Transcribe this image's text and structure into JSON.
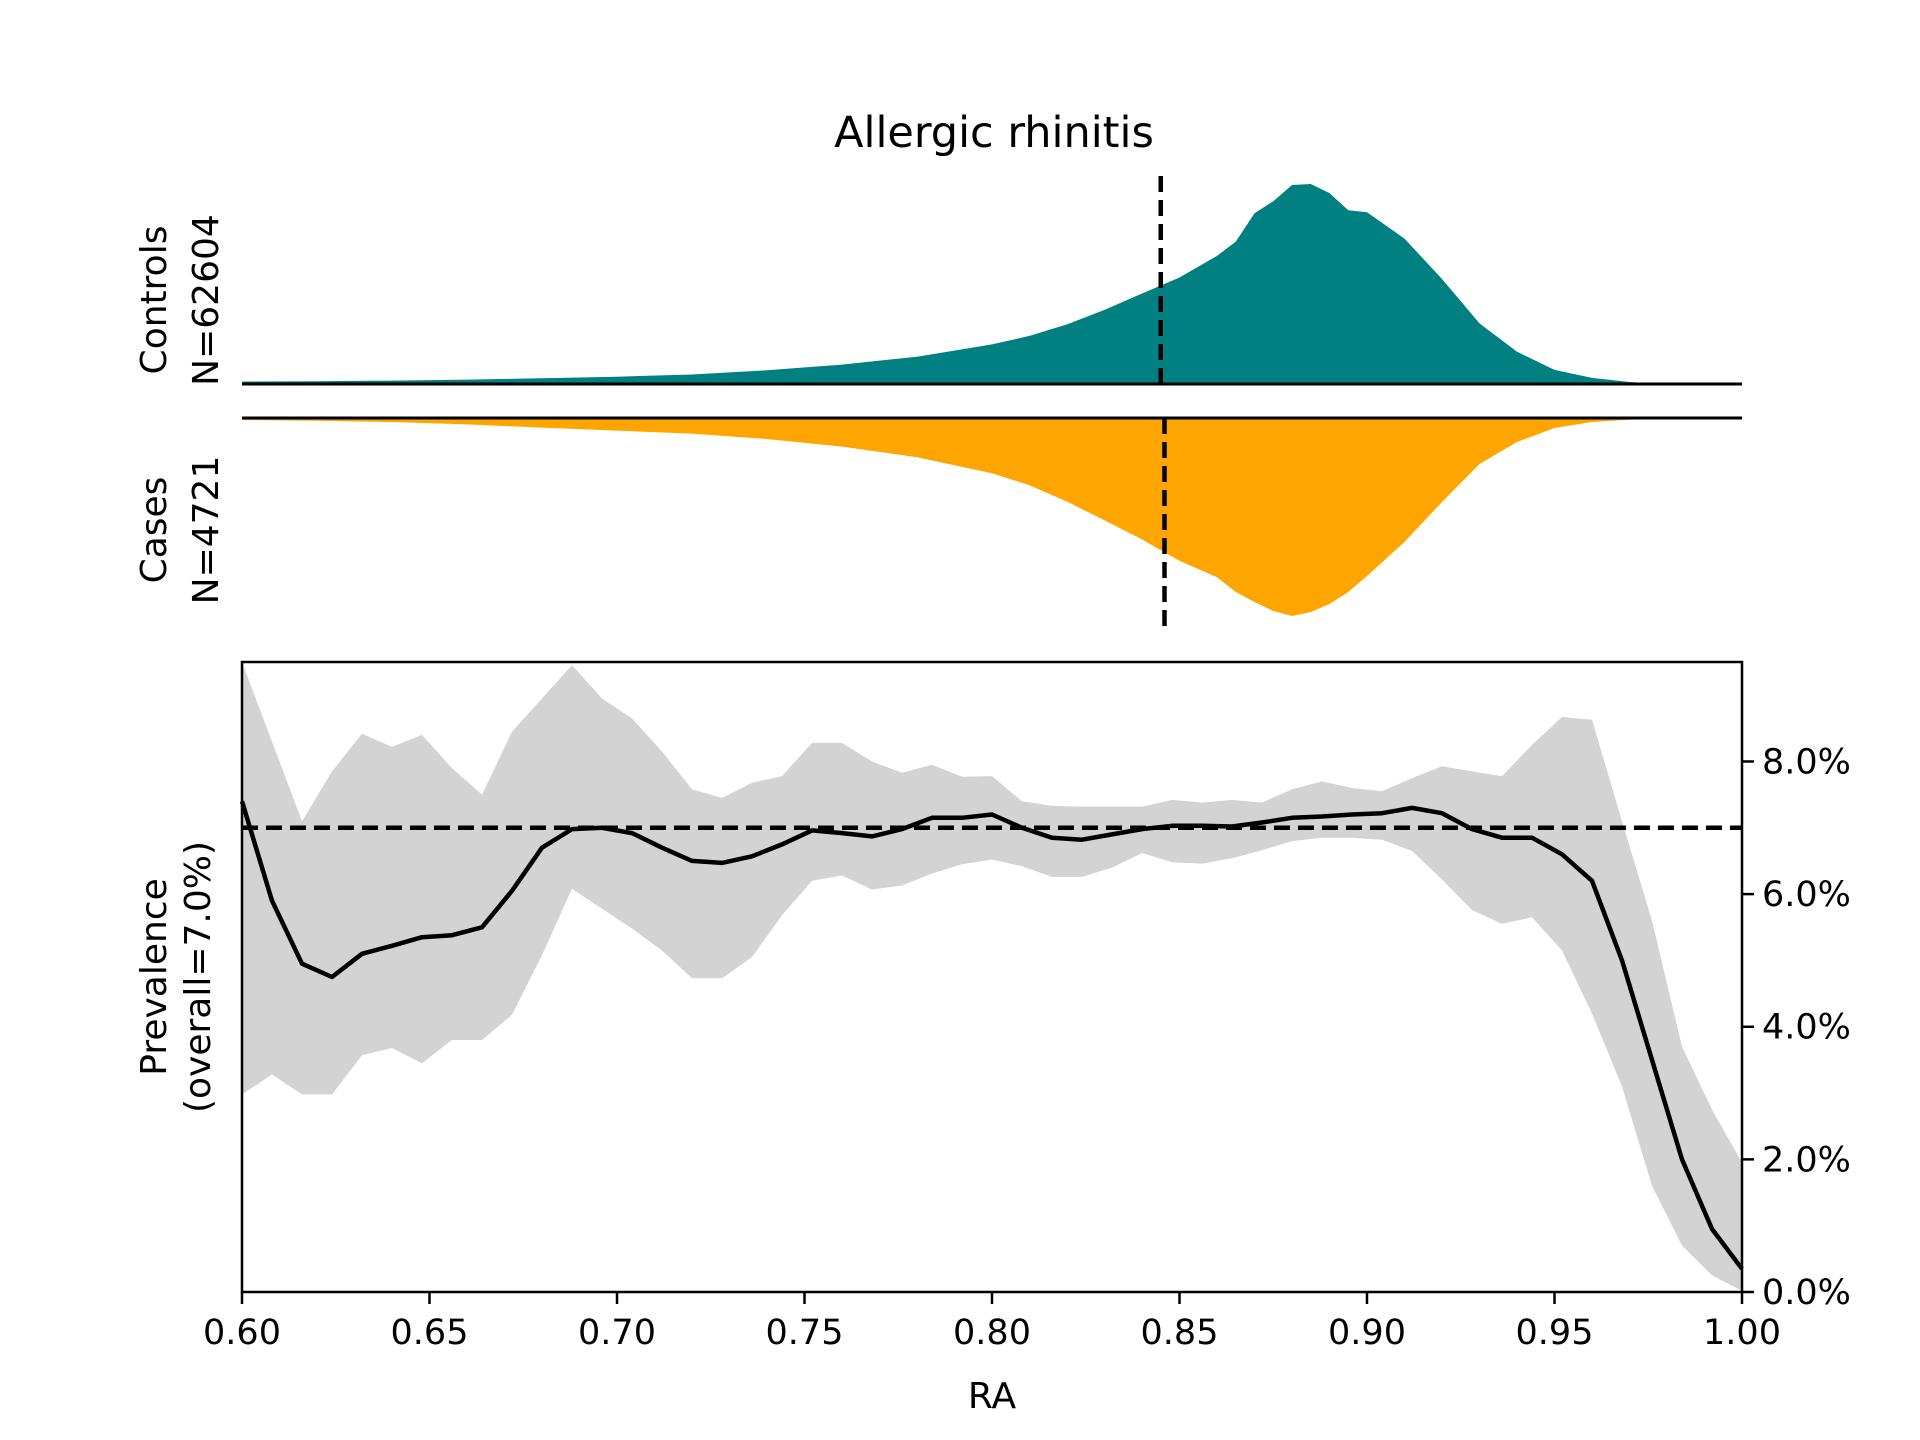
{
  "chart_data": {
    "type": "area",
    "title": "Allergic rhinitis",
    "xlabel": "RA",
    "xlim": [
      0.6,
      1.0
    ],
    "xticks": [
      "0.60",
      "0.65",
      "0.70",
      "0.75",
      "0.80",
      "0.85",
      "0.90",
      "0.95",
      "1.00"
    ],
    "colors": {
      "controls": "#008080",
      "cases": "#ffa500",
      "ci_band": "#d3d3d3",
      "line": "#000000"
    },
    "controls": {
      "label": "Controls",
      "n_label": "N=62604",
      "median": 0.845,
      "x": [
        0.6,
        0.62,
        0.64,
        0.66,
        0.68,
        0.7,
        0.72,
        0.74,
        0.76,
        0.78,
        0.8,
        0.81,
        0.82,
        0.83,
        0.84,
        0.85,
        0.86,
        0.865,
        0.87,
        0.875,
        0.88,
        0.885,
        0.89,
        0.895,
        0.9,
        0.91,
        0.92,
        0.93,
        0.94,
        0.95,
        0.96,
        0.97,
        0.98,
        1.0
      ],
      "density": [
        0.012,
        0.014,
        0.017,
        0.022,
        0.028,
        0.036,
        0.047,
        0.068,
        0.096,
        0.135,
        0.196,
        0.238,
        0.295,
        0.367,
        0.448,
        0.527,
        0.634,
        0.705,
        0.845,
        0.905,
        0.985,
        0.99,
        0.945,
        0.86,
        0.85,
        0.72,
        0.52,
        0.3,
        0.16,
        0.07,
        0.03,
        0.01,
        0.0,
        0.0
      ]
    },
    "cases": {
      "label": "Cases",
      "n_label": "N=4721",
      "median": 0.846,
      "x": [
        0.6,
        0.62,
        0.64,
        0.66,
        0.68,
        0.7,
        0.72,
        0.74,
        0.76,
        0.78,
        0.8,
        0.81,
        0.82,
        0.83,
        0.84,
        0.85,
        0.86,
        0.865,
        0.87,
        0.875,
        0.88,
        0.885,
        0.89,
        0.895,
        0.9,
        0.91,
        0.92,
        0.93,
        0.94,
        0.95,
        0.96,
        0.97,
        0.98,
        1.0
      ],
      "density": [
        0.01,
        0.014,
        0.02,
        0.032,
        0.048,
        0.063,
        0.078,
        0.105,
        0.143,
        0.196,
        0.276,
        0.336,
        0.418,
        0.512,
        0.607,
        0.714,
        0.796,
        0.87,
        0.92,
        0.965,
        0.99,
        0.97,
        0.93,
        0.87,
        0.79,
        0.62,
        0.42,
        0.23,
        0.12,
        0.05,
        0.02,
        0.008,
        0.003,
        0.0
      ]
    },
    "prevalence": {
      "ylabel_line1": "Prevalence",
      "ylabel_line2": "(overall=7.0%)",
      "overall": 7.0,
      "ylim": [
        0,
        9.5
      ],
      "yticks": [
        "0.0%",
        "2.0%",
        "4.0%",
        "6.0%",
        "8.0%"
      ],
      "x": [
        0.6,
        0.608,
        0.616,
        0.624,
        0.632,
        0.64,
        0.648,
        0.656,
        0.664,
        0.672,
        0.68,
        0.688,
        0.696,
        0.704,
        0.712,
        0.72,
        0.728,
        0.736,
        0.744,
        0.752,
        0.76,
        0.768,
        0.776,
        0.784,
        0.792,
        0.8,
        0.808,
        0.816,
        0.824,
        0.832,
        0.84,
        0.848,
        0.856,
        0.864,
        0.872,
        0.88,
        0.888,
        0.896,
        0.904,
        0.912,
        0.92,
        0.928,
        0.936,
        0.944,
        0.952,
        0.96,
        0.968,
        0.976,
        0.984,
        0.992,
        1.0
      ],
      "y": [
        7.4,
        5.9,
        4.95,
        4.75,
        5.1,
        5.22,
        5.35,
        5.38,
        5.5,
        6.05,
        6.7,
        6.98,
        7.0,
        6.92,
        6.7,
        6.5,
        6.47,
        6.57,
        6.75,
        6.96,
        6.92,
        6.87,
        6.98,
        7.15,
        7.15,
        7.2,
        7.0,
        6.85,
        6.82,
        6.9,
        6.98,
        7.03,
        7.03,
        7.02,
        7.08,
        7.15,
        7.17,
        7.2,
        7.22,
        7.3,
        7.22,
        6.98,
        6.85,
        6.85,
        6.6,
        6.2,
        5.0,
        3.5,
        2.0,
        0.95,
        0.35
      ],
      "ci_upper": [
        9.5,
        8.3,
        7.1,
        7.85,
        8.42,
        8.22,
        8.4,
        7.9,
        7.5,
        8.45,
        8.95,
        9.45,
        8.95,
        8.65,
        8.15,
        7.58,
        7.45,
        7.68,
        7.78,
        8.28,
        8.28,
        8.0,
        7.83,
        7.95,
        7.77,
        7.78,
        7.4,
        7.33,
        7.32,
        7.32,
        7.32,
        7.42,
        7.38,
        7.42,
        7.38,
        7.58,
        7.7,
        7.6,
        7.55,
        7.75,
        7.93,
        7.85,
        7.78,
        8.25,
        8.67,
        8.63,
        7.1,
        5.6,
        3.7,
        2.75,
        1.95
      ],
      "ci_lower": [
        2.98,
        3.28,
        2.98,
        2.98,
        3.57,
        3.68,
        3.45,
        3.8,
        3.8,
        4.18,
        5.08,
        6.08,
        5.78,
        5.48,
        5.15,
        4.73,
        4.73,
        5.05,
        5.68,
        6.2,
        6.28,
        6.07,
        6.13,
        6.31,
        6.45,
        6.52,
        6.42,
        6.26,
        6.26,
        6.4,
        6.62,
        6.48,
        6.46,
        6.54,
        6.66,
        6.8,
        6.85,
        6.85,
        6.82,
        6.65,
        6.22,
        5.76,
        5.55,
        5.65,
        5.15,
        4.2,
        3.1,
        1.6,
        0.7,
        0.25,
        0.02
      ]
    }
  }
}
